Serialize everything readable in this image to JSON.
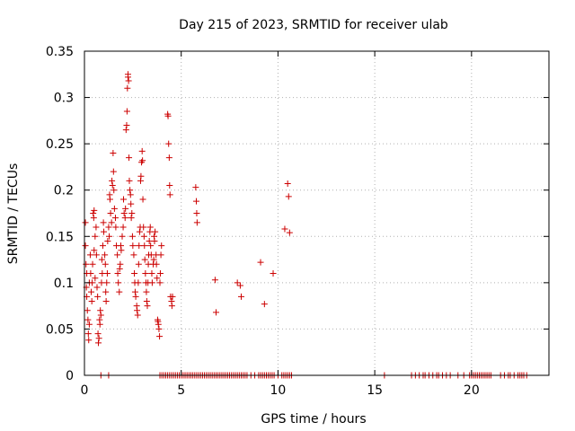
{
  "chart_data": {
    "type": "scatter",
    "title": "Day 215 of 2023, SRMTID for receiver ulab",
    "xlabel": "GPS time / hours",
    "ylabel": "SRMTID / TECUs",
    "xlim": [
      0,
      24
    ],
    "ylim": [
      0,
      0.35
    ],
    "x_ticks": [
      0,
      5,
      10,
      15,
      20
    ],
    "x_tick_labels": [
      "0",
      "5",
      "10",
      "15",
      "20"
    ],
    "y_ticks": [
      0,
      0.05,
      0.1,
      0.15,
      0.2,
      0.25,
      0.3,
      0.35
    ],
    "y_tick_labels": [
      "0",
      "0.05",
      "0.1",
      "0.15",
      "0.2",
      "0.25",
      "0.3",
      "0.35"
    ],
    "grid": true,
    "marker": "+",
    "series": [
      {
        "name": "SRMTID",
        "color": "#cc0000",
        "points": [
          [
            0.05,
            0.165
          ],
          [
            0.05,
            0.14
          ],
          [
            0.08,
            0.12
          ],
          [
            0.1,
            0.095
          ],
          [
            0.12,
            0.085
          ],
          [
            0.12,
            0.11
          ],
          [
            0.15,
            0.07
          ],
          [
            0.18,
            0.06
          ],
          [
            0.2,
            0.045
          ],
          [
            0.22,
            0.038
          ],
          [
            0.25,
            0.055
          ],
          [
            0.25,
            0.1
          ],
          [
            0.3,
            0.13
          ],
          [
            0.32,
            0.11
          ],
          [
            0.35,
            0.09
          ],
          [
            0.38,
            0.08
          ],
          [
            0.4,
            0.1
          ],
          [
            0.42,
            0.12
          ],
          [
            0.45,
            0.175
          ],
          [
            0.48,
            0.17
          ],
          [
            0.5,
            0.178
          ],
          [
            0.5,
            0.135
          ],
          [
            0.55,
            0.15
          ],
          [
            0.55,
            0.105
          ],
          [
            0.6,
            0.16
          ],
          [
            0.62,
            0.13
          ],
          [
            0.65,
            0.095
          ],
          [
            0.68,
            0.085
          ],
          [
            0.7,
            0.045
          ],
          [
            0.72,
            0.035
          ],
          [
            0.75,
            0.04
          ],
          [
            0.78,
            0.06
          ],
          [
            0.8,
            0.055
          ],
          [
            0.82,
            0.07
          ],
          [
            0.85,
            0.065
          ],
          [
            0.88,
            0.1
          ],
          [
            0.9,
            0.125
          ],
          [
            0.92,
            0.11
          ],
          [
            0.95,
            0.14
          ],
          [
            0.98,
            0.165
          ],
          [
            1.0,
            0.155
          ],
          [
            1.05,
            0.13
          ],
          [
            1.08,
            0.12
          ],
          [
            1.1,
            0.09
          ],
          [
            1.12,
            0.08
          ],
          [
            1.15,
            0.1
          ],
          [
            1.18,
            0.11
          ],
          [
            1.2,
            0.145
          ],
          [
            1.25,
            0.16
          ],
          [
            1.28,
            0.15
          ],
          [
            1.3,
            0.195
          ],
          [
            1.32,
            0.19
          ],
          [
            1.35,
            0.175
          ],
          [
            1.4,
            0.165
          ],
          [
            1.42,
            0.21
          ],
          [
            1.45,
            0.205
          ],
          [
            1.48,
            0.24
          ],
          [
            1.5,
            0.22
          ],
          [
            1.52,
            0.2
          ],
          [
            1.55,
            0.18
          ],
          [
            1.6,
            0.17
          ],
          [
            1.62,
            0.16
          ],
          [
            1.65,
            0.14
          ],
          [
            1.7,
            0.13
          ],
          [
            1.72,
            0.11
          ],
          [
            1.75,
            0.1
          ],
          [
            1.8,
            0.09
          ],
          [
            1.82,
            0.115
          ],
          [
            1.85,
            0.12
          ],
          [
            1.88,
            0.14
          ],
          [
            1.9,
            0.135
          ],
          [
            1.95,
            0.15
          ],
          [
            2.0,
            0.16
          ],
          [
            2.02,
            0.19
          ],
          [
            2.05,
            0.175
          ],
          [
            2.1,
            0.17
          ],
          [
            2.12,
            0.18
          ],
          [
            2.15,
            0.265
          ],
          [
            2.18,
            0.27
          ],
          [
            2.2,
            0.285
          ],
          [
            2.22,
            0.31
          ],
          [
            2.25,
            0.322
          ],
          [
            2.25,
            0.325
          ],
          [
            2.28,
            0.318
          ],
          [
            2.3,
            0.235
          ],
          [
            2.32,
            0.21
          ],
          [
            2.35,
            0.2
          ],
          [
            2.38,
            0.195
          ],
          [
            2.4,
            0.185
          ],
          [
            2.42,
            0.17
          ],
          [
            2.45,
            0.175
          ],
          [
            2.48,
            0.15
          ],
          [
            2.5,
            0.14
          ],
          [
            2.55,
            0.13
          ],
          [
            2.58,
            0.11
          ],
          [
            2.6,
            0.1
          ],
          [
            2.62,
            0.09
          ],
          [
            2.65,
            0.085
          ],
          [
            2.7,
            0.075
          ],
          [
            2.72,
            0.07
          ],
          [
            2.75,
            0.065
          ],
          [
            2.78,
            0.1
          ],
          [
            2.8,
            0.12
          ],
          [
            2.82,
            0.14
          ],
          [
            2.85,
            0.155
          ],
          [
            2.88,
            0.16
          ],
          [
            2.9,
            0.21
          ],
          [
            2.92,
            0.215
          ],
          [
            2.95,
            0.23
          ],
          [
            2.98,
            0.242
          ],
          [
            3.0,
            0.232
          ],
          [
            3.02,
            0.19
          ],
          [
            3.05,
            0.16
          ],
          [
            3.08,
            0.15
          ],
          [
            3.1,
            0.14
          ],
          [
            3.12,
            0.125
          ],
          [
            3.15,
            0.11
          ],
          [
            3.18,
            0.1
          ],
          [
            3.2,
            0.09
          ],
          [
            3.22,
            0.08
          ],
          [
            3.25,
            0.075
          ],
          [
            3.28,
            0.1
          ],
          [
            3.3,
            0.12
          ],
          [
            3.32,
            0.13
          ],
          [
            3.35,
            0.145
          ],
          [
            3.38,
            0.155
          ],
          [
            3.4,
            0.16
          ],
          [
            3.42,
            0.14
          ],
          [
            3.45,
            0.13
          ],
          [
            3.48,
            0.11
          ],
          [
            3.5,
            0.1
          ],
          [
            3.55,
            0.12
          ],
          [
            3.58,
            0.125
          ],
          [
            3.6,
            0.15
          ],
          [
            3.62,
            0.145
          ],
          [
            3.65,
            0.155
          ],
          [
            3.7,
            0.13
          ],
          [
            3.72,
            0.12
          ],
          [
            3.75,
            0.105
          ],
          [
            3.78,
            0.06
          ],
          [
            3.8,
            0.058
          ],
          [
            3.82,
            0.055
          ],
          [
            3.85,
            0.05
          ],
          [
            3.88,
            0.042
          ],
          [
            3.9,
            0.1
          ],
          [
            3.92,
            0.11
          ],
          [
            3.95,
            0.13
          ],
          [
            3.98,
            0.14
          ],
          [
            4.3,
            0.282
          ],
          [
            4.32,
            0.28
          ],
          [
            4.35,
            0.25
          ],
          [
            4.38,
            0.235
          ],
          [
            4.4,
            0.205
          ],
          [
            4.42,
            0.195
          ],
          [
            4.45,
            0.085
          ],
          [
            4.5,
            0.08
          ],
          [
            4.52,
            0.075
          ],
          [
            4.55,
            0.085
          ],
          [
            5.75,
            0.203
          ],
          [
            5.78,
            0.188
          ],
          [
            5.8,
            0.175
          ],
          [
            5.82,
            0.165
          ],
          [
            6.75,
            0.103
          ],
          [
            6.8,
            0.068
          ],
          [
            7.9,
            0.1
          ],
          [
            8.05,
            0.097
          ],
          [
            8.1,
            0.085
          ],
          [
            9.1,
            0.122
          ],
          [
            9.3,
            0.077
          ],
          [
            9.75,
            0.11
          ],
          [
            10.35,
            0.158
          ],
          [
            10.5,
            0.207
          ],
          [
            10.55,
            0.193
          ],
          [
            10.6,
            0.154
          ],
          [
            0.85,
            0
          ],
          [
            1.25,
            0
          ],
          [
            3.9,
            0
          ],
          [
            4.0,
            0
          ],
          [
            4.1,
            0
          ],
          [
            4.2,
            0
          ],
          [
            4.3,
            0
          ],
          [
            4.4,
            0
          ],
          [
            4.5,
            0
          ],
          [
            4.6,
            0
          ],
          [
            4.7,
            0
          ],
          [
            4.8,
            0
          ],
          [
            4.9,
            0
          ],
          [
            5.0,
            0
          ],
          [
            5.1,
            0
          ],
          [
            5.2,
            0
          ],
          [
            5.3,
            0
          ],
          [
            5.4,
            0
          ],
          [
            5.5,
            0
          ],
          [
            5.6,
            0
          ],
          [
            5.7,
            0
          ],
          [
            5.8,
            0
          ],
          [
            5.9,
            0
          ],
          [
            6.0,
            0
          ],
          [
            6.1,
            0
          ],
          [
            6.2,
            0
          ],
          [
            6.3,
            0
          ],
          [
            6.4,
            0
          ],
          [
            6.5,
            0
          ],
          [
            6.6,
            0
          ],
          [
            6.7,
            0
          ],
          [
            6.8,
            0
          ],
          [
            6.9,
            0
          ],
          [
            7.0,
            0
          ],
          [
            7.1,
            0
          ],
          [
            7.2,
            0
          ],
          [
            7.3,
            0
          ],
          [
            7.4,
            0
          ],
          [
            7.5,
            0
          ],
          [
            7.6,
            0
          ],
          [
            7.7,
            0
          ],
          [
            7.8,
            0
          ],
          [
            7.9,
            0
          ],
          [
            8.0,
            0
          ],
          [
            8.1,
            0
          ],
          [
            8.2,
            0
          ],
          [
            8.3,
            0
          ],
          [
            8.4,
            0
          ],
          [
            8.6,
            0
          ],
          [
            8.8,
            0
          ],
          [
            9.0,
            0
          ],
          [
            9.1,
            0
          ],
          [
            9.2,
            0
          ],
          [
            9.3,
            0
          ],
          [
            9.4,
            0
          ],
          [
            9.5,
            0
          ],
          [
            9.6,
            0
          ],
          [
            9.7,
            0
          ],
          [
            9.8,
            0
          ],
          [
            10.0,
            0
          ],
          [
            10.2,
            0
          ],
          [
            10.3,
            0
          ],
          [
            10.4,
            0
          ],
          [
            10.5,
            0
          ],
          [
            10.6,
            0
          ],
          [
            10.7,
            0
          ],
          [
            15.5,
            0
          ],
          [
            16.9,
            0
          ],
          [
            17.1,
            0
          ],
          [
            17.3,
            0
          ],
          [
            17.5,
            0
          ],
          [
            17.6,
            0
          ],
          [
            17.8,
            0
          ],
          [
            18.0,
            0
          ],
          [
            18.2,
            0
          ],
          [
            18.3,
            0
          ],
          [
            18.5,
            0
          ],
          [
            18.7,
            0
          ],
          [
            18.9,
            0
          ],
          [
            19.3,
            0
          ],
          [
            19.6,
            0
          ],
          [
            19.9,
            0
          ],
          [
            20.0,
            0
          ],
          [
            20.1,
            0
          ],
          [
            20.2,
            0
          ],
          [
            20.3,
            0
          ],
          [
            20.4,
            0
          ],
          [
            20.5,
            0
          ],
          [
            20.6,
            0
          ],
          [
            20.7,
            0
          ],
          [
            20.8,
            0
          ],
          [
            20.9,
            0
          ],
          [
            21.0,
            0
          ],
          [
            21.5,
            0
          ],
          [
            21.7,
            0
          ],
          [
            21.9,
            0
          ],
          [
            22.0,
            0
          ],
          [
            22.2,
            0
          ],
          [
            22.4,
            0
          ],
          [
            22.5,
            0
          ],
          [
            22.6,
            0
          ],
          [
            22.7,
            0
          ],
          [
            22.85,
            0
          ]
        ]
      }
    ]
  }
}
